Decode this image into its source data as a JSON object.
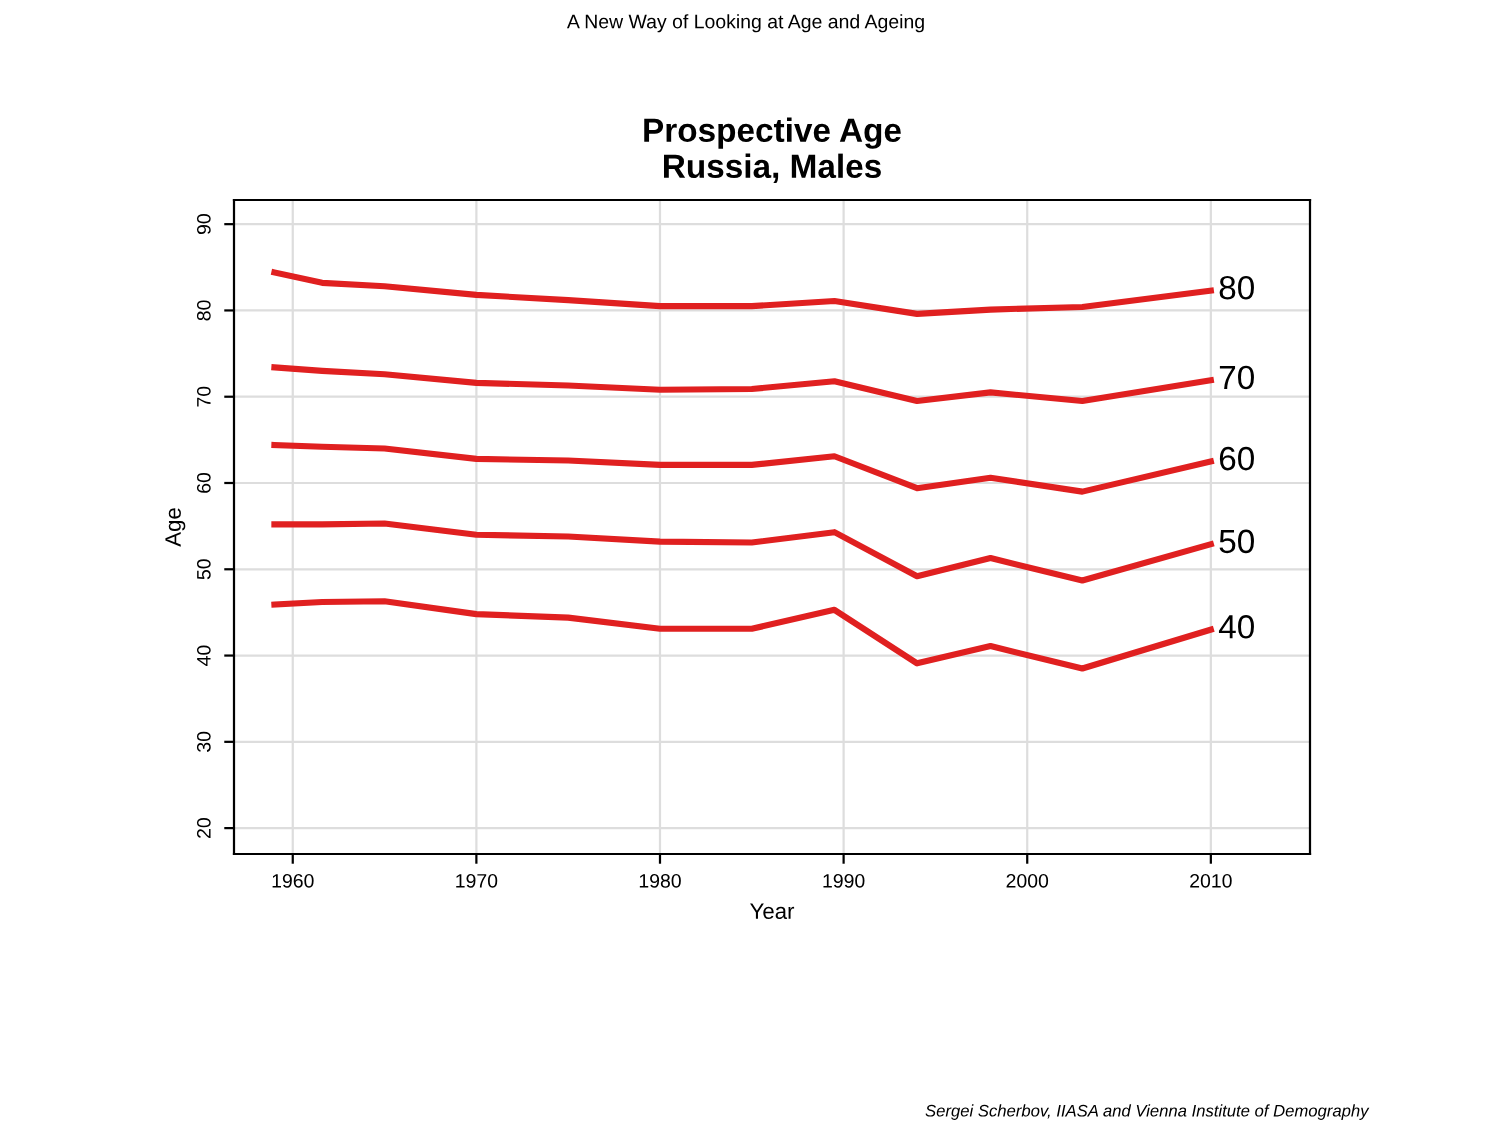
{
  "chart_data": {
    "type": "line",
    "title": "Prospective Age\nRussia, Males",
    "xlabel": "Year",
    "ylabel": "Age",
    "annotations": [
      "A New Way of Looking at Age and Ageing",
      "Sergei Scherbov, IIASA and Vienna Institute of Demography"
    ],
    "x": [
      1959,
      1961.6,
      1965,
      1970,
      1975,
      1980,
      1985,
      1989.5,
      1994,
      1998,
      2003,
      2010
    ],
    "series": [
      {
        "name": "80",
        "color": "#e02020",
        "values": [
          84.4,
          83.2,
          82.8,
          81.8,
          81.2,
          80.5,
          80.5,
          81.1,
          79.6,
          80.1,
          80.4,
          82.3
        ]
      },
      {
        "name": "70",
        "color": "#e02020",
        "values": [
          73.4,
          73.0,
          72.6,
          71.6,
          71.3,
          70.8,
          70.9,
          71.8,
          69.5,
          70.5,
          69.5,
          71.9
        ]
      },
      {
        "name": "60",
        "color": "#e02020",
        "values": [
          64.4,
          64.2,
          64.0,
          62.8,
          62.6,
          62.1,
          62.1,
          63.1,
          59.4,
          60.6,
          59.0,
          62.5
        ]
      },
      {
        "name": "50",
        "color": "#e02020",
        "values": [
          55.2,
          55.2,
          55.3,
          54.0,
          53.8,
          53.2,
          53.1,
          54.3,
          49.2,
          51.3,
          48.7,
          52.9
        ]
      },
      {
        "name": "40",
        "color": "#e02020",
        "values": [
          45.9,
          46.2,
          46.3,
          44.8,
          44.4,
          43.1,
          43.1,
          45.3,
          39.1,
          41.1,
          38.5,
          43.0
        ]
      }
    ],
    "xlim": [
      1956.8,
      2015.4
    ],
    "ylim": [
      17,
      92.8
    ],
    "xticks": [
      1960,
      1970,
      1980,
      1990,
      2000,
      2010
    ],
    "yticks": [
      20,
      30,
      40,
      50,
      60,
      70,
      80,
      90
    ],
    "grid": true,
    "legend": false,
    "marker": "none",
    "line_style": "solid"
  }
}
